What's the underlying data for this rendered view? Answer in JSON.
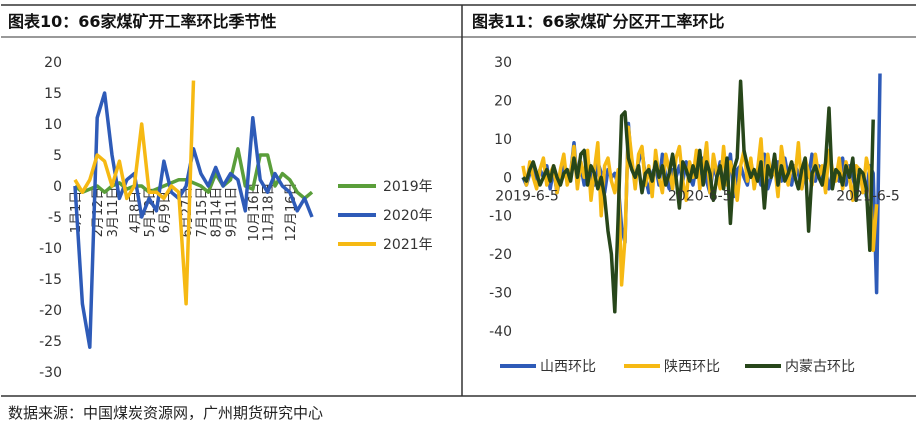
{
  "source": "数据来源：中国煤炭资源网，广州期货研究中心",
  "chart_data": [
    {
      "type": "line",
      "title": "图表10：66家煤矿开工率环比季节性",
      "ylim": [
        -30,
        20
      ],
      "yticks": [
        "20",
        "15",
        "10",
        "5",
        "0",
        "-5",
        "-10",
        "-15",
        "-20",
        "-25",
        "-30"
      ],
      "ytick_values": [
        20,
        15,
        10,
        5,
        0,
        -5,
        -10,
        -15,
        -20,
        -25,
        -30
      ],
      "xtick_labels": [
        "1月1日",
        "2月12日",
        "3月11日",
        "4月8日",
        "5月12日",
        "6月9日",
        "6月27日",
        "7月15日",
        "8月14日",
        "9月11日",
        "10月16日",
        "11月18日",
        "12月16日"
      ],
      "xtick_index": [
        0,
        3,
        5,
        8,
        10,
        12,
        15,
        17,
        19,
        21,
        24,
        26,
        29
      ],
      "legend_position": "right",
      "series": [
        {
          "name": "2019年",
          "color": "#5a9e3a",
          "values": [
            0,
            -1,
            -0.5,
            0,
            -1,
            0,
            0.5,
            -0.5,
            0,
            0,
            -1,
            -0.5,
            0,
            0.5,
            1,
            1,
            0.5,
            0,
            -1,
            2,
            0,
            1,
            6,
            0,
            -0.5,
            5,
            5,
            0,
            2,
            1,
            -1,
            -2,
            -1
          ]
        },
        {
          "name": "2020年",
          "color": "#2e5bb8",
          "values": [
            0,
            -19,
            -26,
            11,
            15,
            5,
            -2,
            1,
            2,
            -5,
            -2,
            -4,
            4,
            -1,
            -2,
            0,
            6,
            2,
            0,
            3,
            0,
            2,
            1,
            -4,
            11,
            1,
            -1,
            2,
            0,
            -1,
            -4,
            -2,
            -5
          ]
        },
        {
          "name": "2021年",
          "color": "#f6b913",
          "values": [
            1,
            -1,
            1,
            5,
            4,
            0,
            4,
            -2,
            0,
            10,
            -1,
            -1,
            -2,
            0,
            -1,
            -19,
            17
          ]
        }
      ]
    },
    {
      "type": "line",
      "title": "图表11：66家煤矿分区开工率环比",
      "ylim": [
        -40,
        30
      ],
      "yticks": [
        "30",
        "20",
        "10",
        "0",
        "-10",
        "-20",
        "-30",
        "-40"
      ],
      "ytick_values": [
        30,
        20,
        10,
        0,
        -10,
        -20,
        -30,
        -40
      ],
      "xtick_labels": [
        "2019-6-5",
        "2020-6-5",
        "2021-6-5"
      ],
      "xtick_index": [
        0,
        52,
        103
      ],
      "legend_position": "bottom",
      "series": [
        {
          "name": "山西环比",
          "color": "#2e5bb8",
          "values": [
            0,
            -2,
            1,
            3,
            -1,
            2,
            0,
            3,
            -3,
            2,
            -4,
            0,
            3,
            -1,
            1,
            9,
            -2,
            3,
            -2,
            5,
            0,
            -2,
            4,
            1,
            -4,
            2,
            0,
            1,
            -2,
            -13,
            -17,
            14,
            2,
            0,
            4,
            7,
            0,
            -4,
            1,
            3,
            -2,
            6,
            0,
            -3,
            2,
            0,
            3,
            -1,
            4,
            0,
            -2,
            3,
            0,
            5,
            -1,
            -4,
            3,
            0,
            4,
            -2,
            1,
            6,
            -5,
            2,
            3,
            0,
            -2,
            4,
            0,
            1,
            -2,
            6,
            -3,
            0,
            2,
            4,
            -1,
            5,
            0,
            -2,
            3,
            1,
            -3,
            2,
            0,
            6,
            -1,
            3,
            0,
            2,
            -3,
            1,
            0,
            -1,
            5,
            -2,
            3,
            0,
            -4,
            2,
            0,
            -5,
            3,
            1,
            -30,
            27
          ]
        },
        {
          "name": "陕西环比",
          "color": "#f6b913",
          "values": [
            3,
            -2,
            4,
            0,
            -3,
            2,
            5,
            -2,
            1,
            3,
            -4,
            2,
            6,
            -2,
            1,
            8,
            -3,
            4,
            0,
            7,
            -6,
            2,
            9,
            -10,
            3,
            5,
            -1,
            -4,
            2,
            -28,
            -16,
            13,
            5,
            -3,
            6,
            8,
            -2,
            3,
            -5,
            7,
            0,
            -4,
            6,
            2,
            -3,
            5,
            8,
            -1,
            -6,
            4,
            0,
            7,
            -3,
            2,
            9,
            -4,
            6,
            1,
            -3,
            8,
            -2,
            4,
            0,
            -6,
            3,
            7,
            -1,
            5,
            -3,
            2,
            10,
            -4,
            6,
            0,
            3,
            -5,
            8,
            2,
            -2,
            4,
            0,
            9,
            -3,
            5,
            1,
            -2,
            6,
            0,
            3,
            -4,
            7,
            2,
            -1,
            5,
            -3,
            4,
            0,
            -6,
            3,
            2,
            -4,
            5,
            1,
            -19,
            -7
          ]
        },
        {
          "name": "内蒙古环比",
          "color": "#27461a",
          "values": [
            0,
            -1,
            2,
            4,
            1,
            -2,
            0,
            2,
            -1,
            3,
            0,
            -2,
            1,
            2,
            -1,
            5,
            0,
            6,
            7,
            -2,
            3,
            1,
            -3,
            0,
            -5,
            -14,
            -20,
            -35,
            -10,
            16,
            17,
            5,
            2,
            0,
            3,
            -4,
            1,
            2,
            -1,
            4,
            0,
            3,
            -2,
            1,
            6,
            0,
            -8,
            4,
            2,
            -1,
            3,
            0,
            7,
            -2,
            4,
            1,
            -6,
            0,
            3,
            -3,
            5,
            -12,
            2,
            5,
            25,
            7,
            3,
            0,
            2,
            -1,
            4,
            -8,
            3,
            0,
            6,
            -2,
            3,
            -1,
            1,
            4,
            0,
            -3,
            2,
            5,
            -14,
            1,
            3,
            0,
            -2,
            4,
            18,
            -3,
            2,
            1,
            -2,
            3,
            0,
            5,
            -6,
            2,
            1,
            -3,
            -19,
            15
          ]
        }
      ]
    }
  ]
}
